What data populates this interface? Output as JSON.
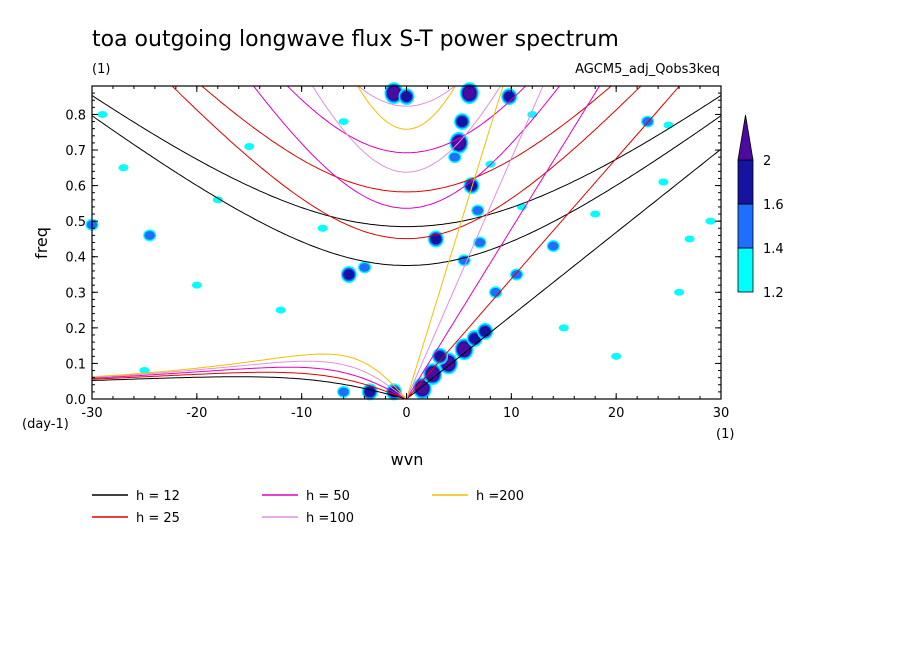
{
  "chart_data": {
    "type": "heatmap",
    "title": "toa outgoing longwave flux S-T power spectrum",
    "subtitle_left": "(1)",
    "subtitle_right": "AGCM5_adj_Qobs3keq",
    "xlabel": "wvn",
    "ylabel": "freq",
    "x_unit": "(1)",
    "y_unit": "(day-1)",
    "xlim": [
      -30,
      30
    ],
    "ylim": [
      0,
      0.88
    ],
    "x_ticks": [
      -30,
      -20,
      -10,
      0,
      10,
      20,
      30
    ],
    "x_tick_labels": [
      "-30",
      "-20",
      "-10",
      "0",
      "10",
      "20",
      "30"
    ],
    "y_ticks": [
      0,
      0.1,
      0.2,
      0.3,
      0.4,
      0.5,
      0.6,
      0.7,
      0.8
    ],
    "y_tick_labels": [
      "0.0",
      "0.1",
      "0.2",
      "0.3",
      "0.4",
      "0.5",
      "0.6",
      "0.7",
      "0.8"
    ],
    "colorbar": {
      "levels": [
        1.2,
        1.4,
        1.6,
        2
      ],
      "labels": [
        "1.2",
        "1.4",
        "1.6",
        "2"
      ],
      "colors": [
        "#00ffff",
        "#1e6eff",
        "#1414a0",
        "#4b0aa0"
      ]
    },
    "dispersion_curves": [
      {
        "label": "h = 12",
        "h": 12,
        "color": "#000000"
      },
      {
        "label": "h = 25",
        "h": 25,
        "color": "#e00000"
      },
      {
        "label": "h = 50",
        "h": 50,
        "color": "#e000c0"
      },
      {
        "label": "h =100",
        "h": 100,
        "color": "#e090e0"
      },
      {
        "label": "h =200",
        "h": 200,
        "color": "#f0c000"
      }
    ],
    "contour_blobs": [
      {
        "x": 1.5,
        "y": 0.03,
        "level": 2
      },
      {
        "x": 2.5,
        "y": 0.07,
        "level": 2
      },
      {
        "x": 4.0,
        "y": 0.1,
        "level": 2
      },
      {
        "x": 5.5,
        "y": 0.14,
        "level": 2
      },
      {
        "x": 6.5,
        "y": 0.17,
        "level": 1.6
      },
      {
        "x": 7.5,
        "y": 0.19,
        "level": 1.6
      },
      {
        "x": 3.2,
        "y": 0.12,
        "level": 1.6
      },
      {
        "x": -1.2,
        "y": 0.02,
        "level": 1.6
      },
      {
        "x": -3.5,
        "y": 0.02,
        "level": 1.6
      },
      {
        "x": -6.0,
        "y": 0.02,
        "level": 1.4
      },
      {
        "x": 2.8,
        "y": 0.45,
        "level": 1.6
      },
      {
        "x": 5.0,
        "y": 0.72,
        "level": 2
      },
      {
        "x": 5.3,
        "y": 0.78,
        "level": 1.6
      },
      {
        "x": 6.0,
        "y": 0.86,
        "level": 2
      },
      {
        "x": 9.8,
        "y": 0.85,
        "level": 1.6
      },
      {
        "x": -1.2,
        "y": 0.86,
        "level": 2
      },
      {
        "x": 0.0,
        "y": 0.85,
        "level": 1.6
      },
      {
        "x": -5.5,
        "y": 0.35,
        "level": 1.6
      },
      {
        "x": -4.0,
        "y": 0.37,
        "level": 1.4
      },
      {
        "x": 6.2,
        "y": 0.6,
        "level": 1.6
      },
      {
        "x": 6.8,
        "y": 0.53,
        "level": 1.4
      },
      {
        "x": 4.6,
        "y": 0.68,
        "level": 1.4
      },
      {
        "x": 5.5,
        "y": 0.39,
        "level": 1.4
      },
      {
        "x": 7.0,
        "y": 0.44,
        "level": 1.4
      },
      {
        "x": 8.5,
        "y": 0.3,
        "level": 1.4
      },
      {
        "x": 10.5,
        "y": 0.35,
        "level": 1.4
      },
      {
        "x": 14.0,
        "y": 0.43,
        "level": 1.4
      },
      {
        "x": 23.0,
        "y": 0.78,
        "level": 1.4
      },
      {
        "x": 25.0,
        "y": 0.77,
        "level": 1.2
      },
      {
        "x": -24.5,
        "y": 0.46,
        "level": 1.4
      },
      {
        "x": -30.0,
        "y": 0.49,
        "level": 1.4
      },
      {
        "x": -27.0,
        "y": 0.65,
        "level": 1.2
      },
      {
        "x": -6.0,
        "y": 0.78,
        "level": 1.2
      },
      {
        "x": -25.0,
        "y": 0.08,
        "level": 1.2
      },
      {
        "x": 18.0,
        "y": 0.52,
        "level": 1.2
      },
      {
        "x": 27.0,
        "y": 0.45,
        "level": 1.2
      },
      {
        "x": 24.5,
        "y": 0.61,
        "level": 1.2
      },
      {
        "x": 11.0,
        "y": 0.54,
        "level": 1.2
      },
      {
        "x": 15.0,
        "y": 0.2,
        "level": 1.2
      },
      {
        "x": -18.0,
        "y": 0.56,
        "level": 1.2
      },
      {
        "x": -12.0,
        "y": 0.25,
        "level": 1.2
      },
      {
        "x": -20.0,
        "y": 0.32,
        "level": 1.2
      },
      {
        "x": 20.0,
        "y": 0.12,
        "level": 1.2
      },
      {
        "x": 26.0,
        "y": 0.3,
        "level": 1.2
      },
      {
        "x": -15.0,
        "y": 0.71,
        "level": 1.2
      },
      {
        "x": 12.0,
        "y": 0.8,
        "level": 1.2
      },
      {
        "x": -8.0,
        "y": 0.48,
        "level": 1.2
      },
      {
        "x": 29.0,
        "y": 0.5,
        "level": 1.2
      },
      {
        "x": -29.0,
        "y": 0.8,
        "level": 1.2
      },
      {
        "x": 8.0,
        "y": 0.66,
        "level": 1.2
      }
    ]
  }
}
